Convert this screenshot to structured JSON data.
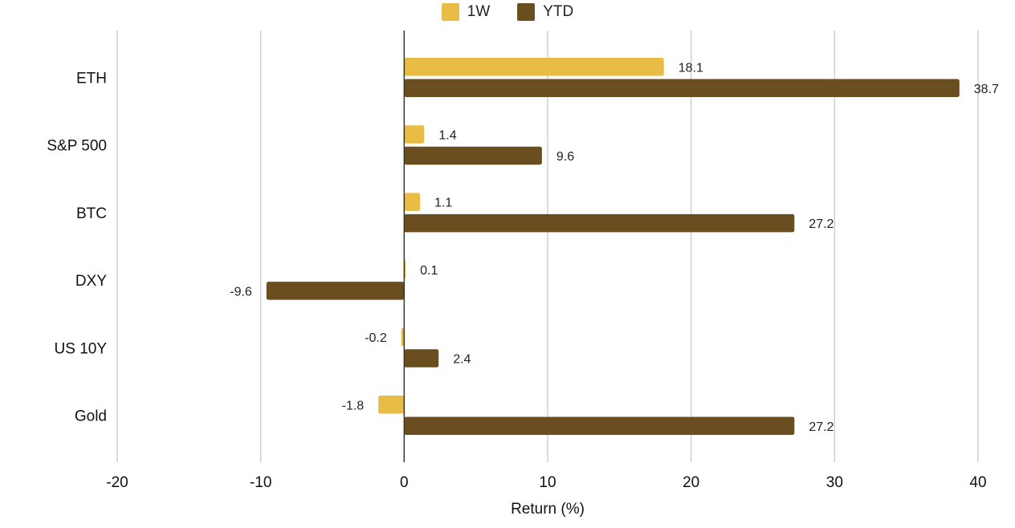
{
  "chart_data": {
    "type": "bar",
    "orientation": "horizontal",
    "categories": [
      "ETH",
      "S&P 500",
      "BTC",
      "DXY",
      "US 10Y",
      "Gold"
    ],
    "series": [
      {
        "name": "1W",
        "values": [
          18.1,
          1.4,
          1.1,
          0.1,
          -0.2,
          -1.8
        ],
        "labels": [
          "18.1",
          "1.4",
          "1.1",
          "0.1",
          "-0.2",
          "-1.8"
        ],
        "color": "#E8BC45"
      },
      {
        "name": "YTD",
        "values": [
          38.7,
          9.6,
          27.2,
          -9.6,
          2.4,
          27.2
        ],
        "labels": [
          "38.7",
          "9.6",
          "27.2",
          "-9.6",
          "2.4",
          "27.2"
        ],
        "color": "#6B4E1F"
      }
    ],
    "xlim": [
      -20,
      40
    ],
    "xticks": [
      -20,
      -10,
      0,
      10,
      20,
      30,
      40
    ],
    "xtick_labels": [
      "-20",
      "-10",
      "0",
      "10",
      "20",
      "30",
      "40"
    ],
    "xlabel": "Return (%)",
    "ylabel": "",
    "title": "",
    "grid": true,
    "legend_position": "top-center"
  }
}
